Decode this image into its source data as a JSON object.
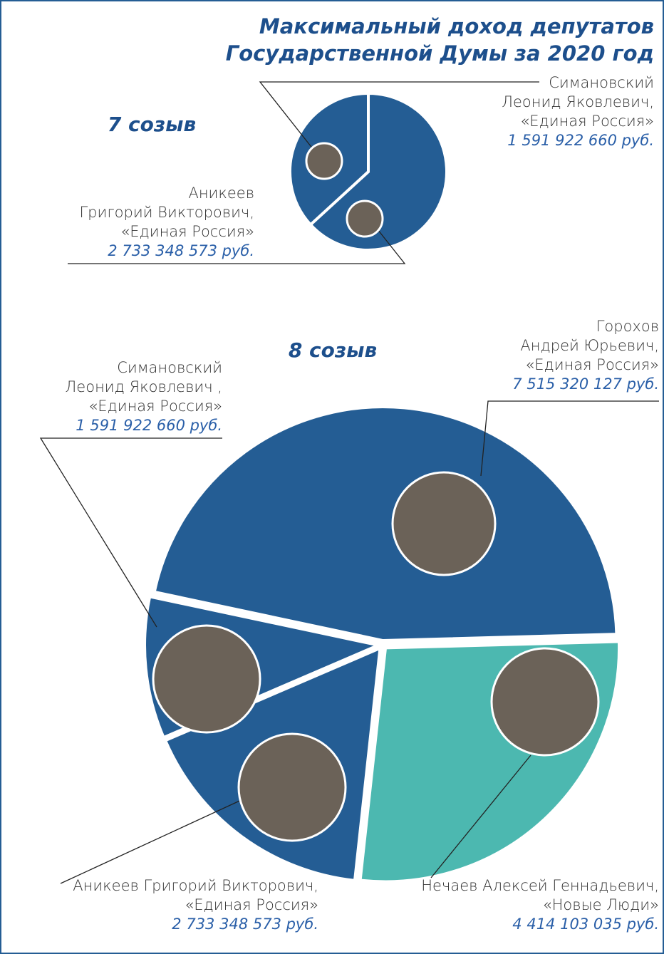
{
  "title": "Максимальный доход депутатов Государственной Думы за 2020 год",
  "chart_data": [
    {
      "type": "pie",
      "title": "7 созыв",
      "categories": [
        [
          "Аникеев",
          "Григорий Викторович,",
          "«Единая Россия»"
        ],
        [
          "Симановский",
          "Леонид Яковлевич,",
          "«Единая Россия»"
        ]
      ],
      "values": [
        2733348573,
        1591922660
      ],
      "value_labels": [
        "2 733 348 573 руб.",
        "1 591 922 660 руб."
      ],
      "colors": [
        "#245d94",
        "#245d94"
      ]
    },
    {
      "type": "pie",
      "title": "8 созыв",
      "categories": [
        [
          "Горохов",
          "Андрей Юрьевич,",
          "«Единая Россия»"
        ],
        [
          "Нечаев Алексей Геннадьевич,",
          "«Новые Люди»"
        ],
        [
          "Аникеев Григорий Викторович,",
          "«Единая Россия»"
        ],
        [
          "Симановский",
          "Леонид Яковлевич ,",
          "«Единая Россия»"
        ]
      ],
      "values": [
        7515320127,
        4414103035,
        2733348573,
        1591922660
      ],
      "value_labels": [
        "7 515 320 127 руб.",
        "4 414 103 035 руб.",
        "2 733 348 573 руб.",
        "1 591 922 660 руб."
      ],
      "colors": [
        "#245d94",
        "#4cb8b0",
        "#245d94",
        "#245d94"
      ]
    }
  ]
}
